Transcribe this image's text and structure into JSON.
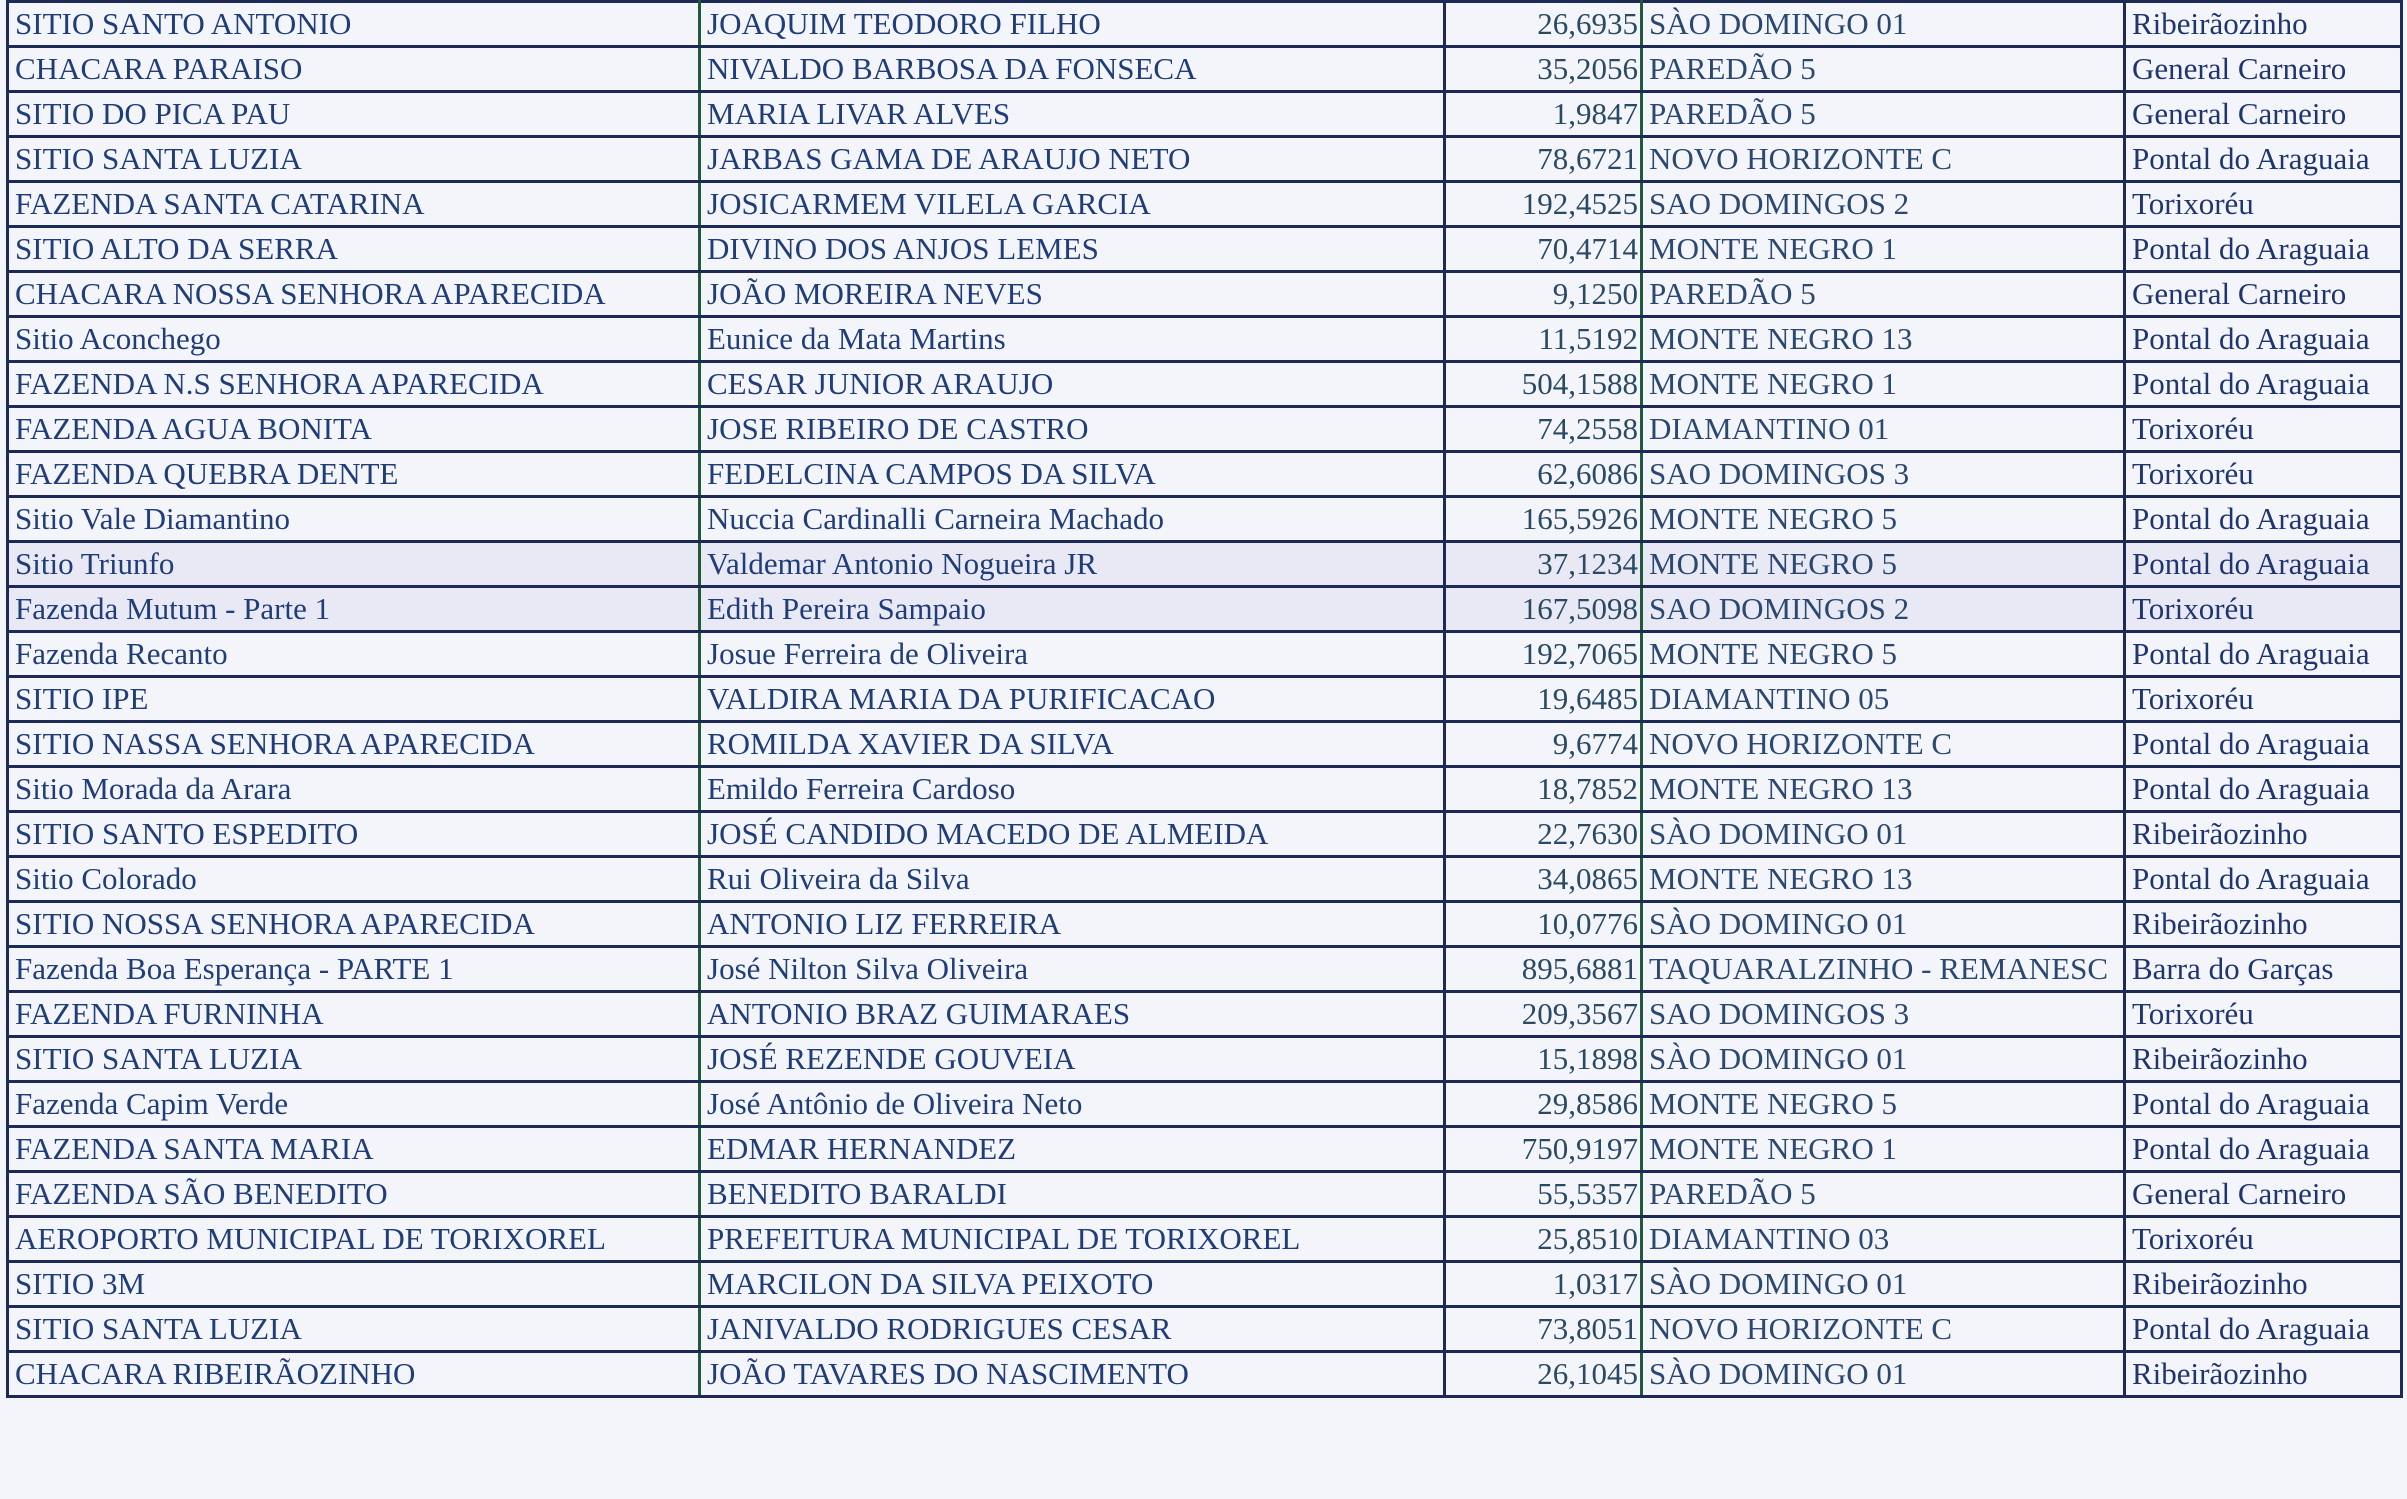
{
  "rows": [
    [
      "SITIO SANTO ANTONIO",
      "JOAQUIM TEODORO FILHO",
      "26,6935",
      "SÀO DOMINGO 01",
      "Ribeirãozinho"
    ],
    [
      "CHACARA PARAISO",
      "NIVALDO BARBOSA DA FONSECA",
      "35,2056",
      "PAREDÃO 5",
      "General Carneiro"
    ],
    [
      "SITIO DO PICA PAU",
      "MARIA LIVAR ALVES",
      "1,9847",
      "PAREDÃO 5",
      "General Carneiro"
    ],
    [
      "SITIO SANTA LUZIA",
      "JARBAS GAMA DE ARAUJO NETO",
      "78,6721",
      "NOVO HORIZONTE C",
      "Pontal do Araguaia"
    ],
    [
      "FAZENDA SANTA CATARINA",
      "JOSICARMEM VILELA GARCIA",
      "192,4525",
      "SAO DOMINGOS 2",
      "Torixoréu"
    ],
    [
      "SITIO ALTO DA SERRA",
      "DIVINO DOS ANJOS LEMES",
      "70,4714",
      "MONTE NEGRO 1",
      "Pontal do Araguaia"
    ],
    [
      "CHACARA NOSSA SENHORA APARECIDA",
      "JOÃO MOREIRA NEVES",
      "9,1250",
      "PAREDÃO 5",
      "General Carneiro"
    ],
    [
      "Sitio Aconchego",
      "Eunice da Mata Martins",
      "11,5192",
      "MONTE NEGRO 13",
      "Pontal do Araguaia"
    ],
    [
      "FAZENDA N.S SENHORA APARECIDA",
      "CESAR JUNIOR ARAUJO",
      "504,1588",
      "MONTE NEGRO 1",
      "Pontal do Araguaia"
    ],
    [
      "FAZENDA AGUA BONITA",
      "JOSE RIBEIRO DE CASTRO",
      "74,2558",
      "DIAMANTINO 01",
      "Torixoréu"
    ],
    [
      "FAZENDA QUEBRA DENTE",
      "FEDELCINA CAMPOS DA SILVA",
      "62,6086",
      "SAO DOMINGOS 3",
      "Torixoréu"
    ],
    [
      "Sitio Vale Diamantino",
      "Nuccia Cardinalli Carneira Machado",
      "165,5926",
      "MONTE NEGRO 5",
      "Pontal do Araguaia"
    ],
    [
      "Sitio Triunfo",
      "Valdemar Antonio Nogueira JR",
      "37,1234",
      "MONTE NEGRO 5",
      "Pontal do Araguaia"
    ],
    [
      "Fazenda Mutum - Parte 1",
      "Edith Pereira Sampaio",
      "167,5098",
      "SAO DOMINGOS 2",
      "Torixoréu"
    ],
    [
      "Fazenda Recanto",
      "Josue Ferreira de Oliveira",
      "192,7065",
      "MONTE NEGRO 5",
      "Pontal do Araguaia"
    ],
    [
      "SITIO IPE",
      "VALDIRA MARIA DA PURIFICACAO",
      "19,6485",
      "DIAMANTINO 05",
      "Torixoréu"
    ],
    [
      "SITIO NASSA SENHORA APARECIDA",
      "ROMILDA XAVIER DA SILVA",
      "9,6774",
      "NOVO HORIZONTE C",
      "Pontal do Araguaia"
    ],
    [
      "Sitio Morada da Arara",
      "Emildo Ferreira Cardoso",
      "18,7852",
      "MONTE NEGRO 13",
      "Pontal do Araguaia"
    ],
    [
      "SITIO SANTO ESPEDITO",
      "JOSÉ CANDIDO MACEDO DE ALMEIDA",
      "22,7630",
      "SÀO DOMINGO 01",
      "Ribeirãozinho"
    ],
    [
      "Sitio Colorado",
      "Rui Oliveira da Silva",
      "34,0865",
      "MONTE NEGRO 13",
      "Pontal do Araguaia"
    ],
    [
      "SITIO NOSSA SENHORA APARECIDA",
      "ANTONIO LIZ FERREIRA",
      "10,0776",
      "SÀO DOMINGO 01",
      "Ribeirãozinho"
    ],
    [
      "Fazenda Boa Esperança - PARTE 1",
      "José Nilton Silva Oliveira",
      "895,6881",
      "TAQUARALZINHO - REMANESC",
      "Barra do Garças"
    ],
    [
      "FAZENDA FURNINHA",
      "ANTONIO BRAZ GUIMARAES",
      "209,3567",
      "SAO DOMINGOS 3",
      "Torixoréu"
    ],
    [
      "SITIO SANTA LUZIA",
      "JOSÉ REZENDE GOUVEIA",
      "15,1898",
      "SÀO DOMINGO 01",
      "Ribeirãozinho"
    ],
    [
      "Fazenda Capim Verde",
      "José Antônio de Oliveira Neto",
      "29,8586",
      "MONTE NEGRO 5",
      "Pontal do Araguaia"
    ],
    [
      "FAZENDA SANTA MARIA",
      "EDMAR HERNANDEZ",
      "750,9197",
      "MONTE NEGRO 1",
      "Pontal do Araguaia"
    ],
    [
      "FAZENDA SÃO BENEDITO",
      "BENEDITO BARALDI",
      "55,5357",
      "PAREDÃO 5",
      "General Carneiro"
    ],
    [
      "AEROPORTO MUNICIPAL DE TORIXOREL",
      "PREFEITURA MUNICIPAL DE TORIXOREL",
      "25,8510",
      "DIAMANTINO 03",
      "Torixoréu"
    ],
    [
      "SITIO 3M",
      "MARCILON DA SILVA PEIXOTO",
      "1,0317",
      "SÀO DOMINGO 01",
      "Ribeirãozinho"
    ],
    [
      "SITIO SANTA LUZIA",
      "JANIVALDO RODRIGUES CESAR",
      "73,8051",
      "NOVO HORIZONTE C",
      "Pontal do Araguaia"
    ],
    [
      "CHACARA RIBEIRÃOZINHO",
      "JOÃO TAVARES DO NASCIMENTO",
      "26,1045",
      "SÀO DOMINGO 01",
      "Ribeirãozinho"
    ]
  ]
}
